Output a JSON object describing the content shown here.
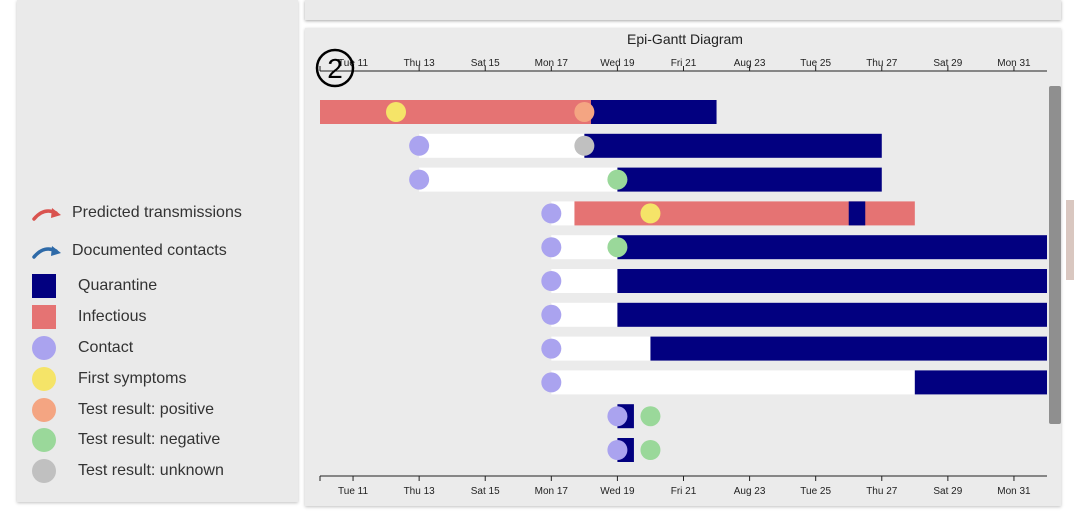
{
  "legend": {
    "items": [
      {
        "label": "Predicted transmissions",
        "kind": "arrow",
        "color": "#d9534f"
      },
      {
        "label": "Documented contacts",
        "kind": "arrow",
        "color": "#2e6aa8"
      },
      {
        "label": "Quarantine",
        "kind": "square",
        "color": "#020080"
      },
      {
        "label": "Infectious",
        "kind": "square",
        "color": "#e57373"
      },
      {
        "label": "Contact",
        "kind": "circle",
        "color": "#aaa3ef"
      },
      {
        "label": "First symptoms",
        "kind": "circle",
        "color": "#f5e468"
      },
      {
        "label": "Test result: positive",
        "kind": "circle",
        "color": "#f4a582"
      },
      {
        "label": "Test result: negative",
        "kind": "circle",
        "color": "#9ad89a"
      },
      {
        "label": "Test result: unknown",
        "kind": "circle",
        "color": "#c0c0c0"
      }
    ]
  },
  "chart_data": {
    "type": "gantt",
    "title": "Epi-Gantt Diagram",
    "annotation": "2",
    "x_range": [
      "Aug 10",
      "Sep 1"
    ],
    "ticks": [
      {
        "day": 11,
        "label": "Tue 11"
      },
      {
        "day": 13,
        "label": "Thu 13"
      },
      {
        "day": 15,
        "label": "Sat 15"
      },
      {
        "day": 17,
        "label": "Mon 17"
      },
      {
        "day": 19,
        "label": "Wed 19"
      },
      {
        "day": 21,
        "label": "Fri 21"
      },
      {
        "day": 23,
        "label": "Aug 23"
      },
      {
        "day": 25,
        "label": "Tue 25"
      },
      {
        "day": 27,
        "label": "Thu 27"
      },
      {
        "day": 29,
        "label": "Sat 29"
      },
      {
        "day": 31,
        "label": "Mon 31"
      }
    ],
    "colors": {
      "quarantine": "#020080",
      "infectious": "#e57373",
      "pre": "#ffffff",
      "contact": "#aaa3ef",
      "symptoms": "#f5e468",
      "positive": "#f4a582",
      "negative": "#9ad89a",
      "unknown": "#c0c0c0"
    },
    "rows": [
      {
        "bars": [
          {
            "type": "infectious",
            "start": 10,
            "end": 20
          },
          {
            "type": "quarantine",
            "start": 18.2,
            "end": 22
          }
        ],
        "markers": [
          {
            "type": "symptoms",
            "day": 12.3
          },
          {
            "type": "positive",
            "day": 18.0
          }
        ]
      },
      {
        "bars": [
          {
            "type": "pre",
            "start": 13.0,
            "end": 18.0
          },
          {
            "type": "quarantine",
            "start": 18.0,
            "end": 27.0
          }
        ],
        "markers": [
          {
            "type": "contact",
            "day": 13.0
          },
          {
            "type": "unknown",
            "day": 18.0
          }
        ]
      },
      {
        "bars": [
          {
            "type": "pre",
            "start": 13.0,
            "end": 19.0
          },
          {
            "type": "quarantine",
            "start": 19.0,
            "end": 27.0
          }
        ],
        "markers": [
          {
            "type": "contact",
            "day": 13.0
          },
          {
            "type": "negative",
            "day": 19.0
          }
        ]
      },
      {
        "bars": [
          {
            "type": "pre",
            "start": 17.0,
            "end": 17.7
          },
          {
            "type": "infectious",
            "start": 17.7,
            "end": 28.0
          },
          {
            "type": "quarantine",
            "start": 26.0,
            "end": 26.5
          }
        ],
        "markers": [
          {
            "type": "contact",
            "day": 17.0
          },
          {
            "type": "symptoms",
            "day": 20.0
          }
        ]
      },
      {
        "bars": [
          {
            "type": "pre",
            "start": 17.0,
            "end": 19.0
          },
          {
            "type": "quarantine",
            "start": 19.0,
            "end": 32.0
          }
        ],
        "markers": [
          {
            "type": "contact",
            "day": 17.0
          },
          {
            "type": "negative",
            "day": 19.0
          }
        ]
      },
      {
        "bars": [
          {
            "type": "pre",
            "start": 17.0,
            "end": 19.0
          },
          {
            "type": "quarantine",
            "start": 19.0,
            "end": 32.0
          }
        ],
        "markers": [
          {
            "type": "contact",
            "day": 17.0
          }
        ]
      },
      {
        "bars": [
          {
            "type": "pre",
            "start": 17.0,
            "end": 19.0
          },
          {
            "type": "quarantine",
            "start": 19.0,
            "end": 32.0
          }
        ],
        "markers": [
          {
            "type": "contact",
            "day": 17.0
          }
        ]
      },
      {
        "bars": [
          {
            "type": "pre",
            "start": 17.0,
            "end": 20.0
          },
          {
            "type": "quarantine",
            "start": 20.0,
            "end": 32.0
          }
        ],
        "markers": [
          {
            "type": "contact",
            "day": 17.0
          }
        ]
      },
      {
        "bars": [
          {
            "type": "pre",
            "start": 17.0,
            "end": 28.0
          },
          {
            "type": "quarantine",
            "start": 28.0,
            "end": 32.0
          }
        ],
        "markers": [
          {
            "type": "contact",
            "day": 17.0
          }
        ]
      },
      {
        "bars": [
          {
            "type": "quarantine",
            "start": 19.0,
            "end": 19.5
          }
        ],
        "markers": [
          {
            "type": "contact",
            "day": 19.0
          },
          {
            "type": "negative",
            "day": 20.0
          }
        ]
      },
      {
        "bars": [
          {
            "type": "quarantine",
            "start": 19.0,
            "end": 19.5
          }
        ],
        "markers": [
          {
            "type": "contact",
            "day": 19.0
          },
          {
            "type": "negative",
            "day": 20.0
          }
        ]
      }
    ]
  }
}
